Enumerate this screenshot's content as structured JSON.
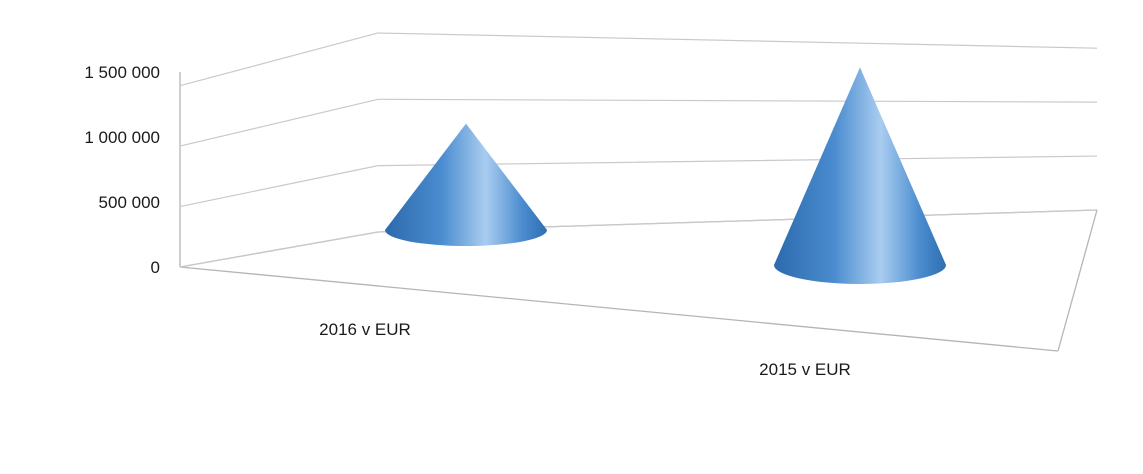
{
  "chart_data": {
    "type": "bar",
    "bar_shape": "cone-3d",
    "categories": [
      "2016 v EUR",
      "2015 v EUR"
    ],
    "series": [
      {
        "values": [
          700000,
          1300000
        ]
      }
    ],
    "y_ticks": [
      "0",
      "500 000",
      "1 000 000",
      "1 500 000"
    ],
    "ylim": [
      0,
      1500000
    ],
    "grid": true,
    "legend": "none",
    "colors": {
      "cone": "#4a8ccf",
      "cone_light": "#a9cdf0",
      "cone_dark": "#2c6aad"
    }
  }
}
